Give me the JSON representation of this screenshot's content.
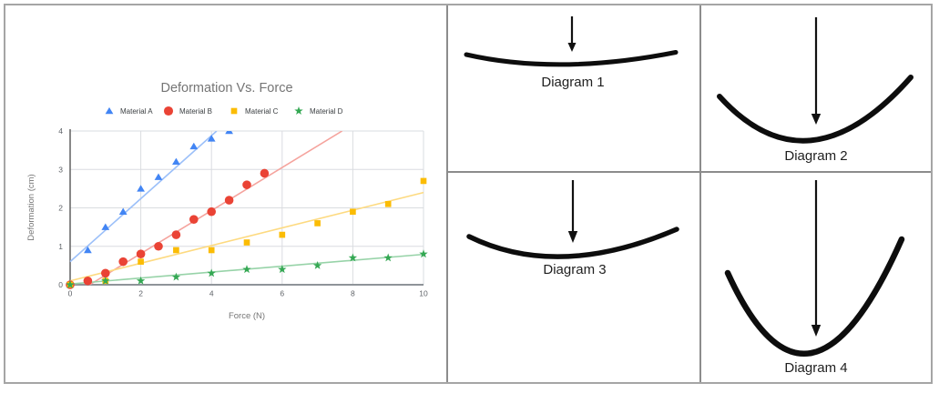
{
  "frame": {
    "background": "#ffffff",
    "border_color": "#a5a5a5",
    "divider_color": "#8c8c8c"
  },
  "chart": {
    "title": "Deformation Vs. Force",
    "title_color": "#757575",
    "legend": [
      {
        "label": "Material A",
        "marker": "triangle-icon",
        "color": "#4285F4"
      },
      {
        "label": "Material B",
        "marker": "circle-icon",
        "color": "#EA4335"
      },
      {
        "label": "Material C",
        "marker": "square-icon",
        "color": "#FBBC04"
      },
      {
        "label": "Material D",
        "marker": "star-icon",
        "color": "#34A853"
      }
    ]
  },
  "chart_data": {
    "type": "scatter",
    "title": "Deformation Vs. Force",
    "xlabel": "Force (N)",
    "ylabel": "Deformation (cm)",
    "xlim": [
      0,
      10
    ],
    "ylim": [
      0,
      4
    ],
    "x_ticks": [
      0,
      2,
      4,
      6,
      8,
      10
    ],
    "y_ticks": [
      0,
      1,
      2,
      3,
      4
    ],
    "grid": true,
    "legend_position": "top",
    "series": [
      {
        "name": "Material A",
        "marker": "triangle",
        "color": "#4285F4",
        "trendline_color": "#9CC0F9",
        "points": [
          [
            0,
            0
          ],
          [
            0.5,
            0.9
          ],
          [
            1,
            1.5
          ],
          [
            1.5,
            1.9
          ],
          [
            2,
            2.5
          ],
          [
            2.5,
            2.8
          ],
          [
            3,
            3.2
          ],
          [
            3.5,
            3.6
          ],
          [
            4,
            3.8
          ],
          [
            4.5,
            4.0
          ]
        ],
        "trend": {
          "slope": 0.82,
          "intercept": 0.6
        }
      },
      {
        "name": "Material B",
        "marker": "circle",
        "color": "#EA4335",
        "trendline_color": "#F5A39D",
        "points": [
          [
            0,
            0
          ],
          [
            0.5,
            0.1
          ],
          [
            1,
            0.3
          ],
          [
            1.5,
            0.6
          ],
          [
            2,
            0.8
          ],
          [
            2.5,
            1.0
          ],
          [
            3,
            1.3
          ],
          [
            3.5,
            1.7
          ],
          [
            4,
            1.9
          ],
          [
            4.5,
            2.2
          ],
          [
            5,
            2.6
          ],
          [
            5.5,
            2.9
          ]
        ],
        "trend": {
          "slope": 0.56,
          "intercept": -0.31
        }
      },
      {
        "name": "Material C",
        "marker": "square",
        "color": "#FBBC04",
        "trendline_color": "#FDDA80",
        "points": [
          [
            0,
            0
          ],
          [
            1,
            0.1
          ],
          [
            2,
            0.6
          ],
          [
            3,
            0.9
          ],
          [
            4,
            0.9
          ],
          [
            5,
            1.1
          ],
          [
            6,
            1.3
          ],
          [
            7,
            1.6
          ],
          [
            8,
            1.9
          ],
          [
            9,
            2.1
          ],
          [
            10,
            2.7
          ]
        ],
        "trend": {
          "slope": 0.23,
          "intercept": 0.1
        }
      },
      {
        "name": "Material D",
        "marker": "star",
        "color": "#34A853",
        "trendline_color": "#97D3A8",
        "points": [
          [
            0,
            0
          ],
          [
            1,
            0.1
          ],
          [
            2,
            0.1
          ],
          [
            3,
            0.2
          ],
          [
            4,
            0.3
          ],
          [
            5,
            0.4
          ],
          [
            6,
            0.4
          ],
          [
            7,
            0.5
          ],
          [
            8,
            0.7
          ],
          [
            9,
            0.7
          ],
          [
            10,
            0.8
          ]
        ],
        "trend": {
          "slope": 0.077,
          "intercept": 0.02
        }
      }
    ]
  },
  "diagrams": [
    {
      "label": "Diagram 1",
      "bend": "slight",
      "force_arrow": "short"
    },
    {
      "label": "Diagram 2",
      "bend": "deep",
      "force_arrow": "long"
    },
    {
      "label": "Diagram 3",
      "bend": "moderate",
      "force_arrow": "medium"
    },
    {
      "label": "Diagram 4",
      "bend": "deepest",
      "force_arrow": "longest"
    }
  ]
}
